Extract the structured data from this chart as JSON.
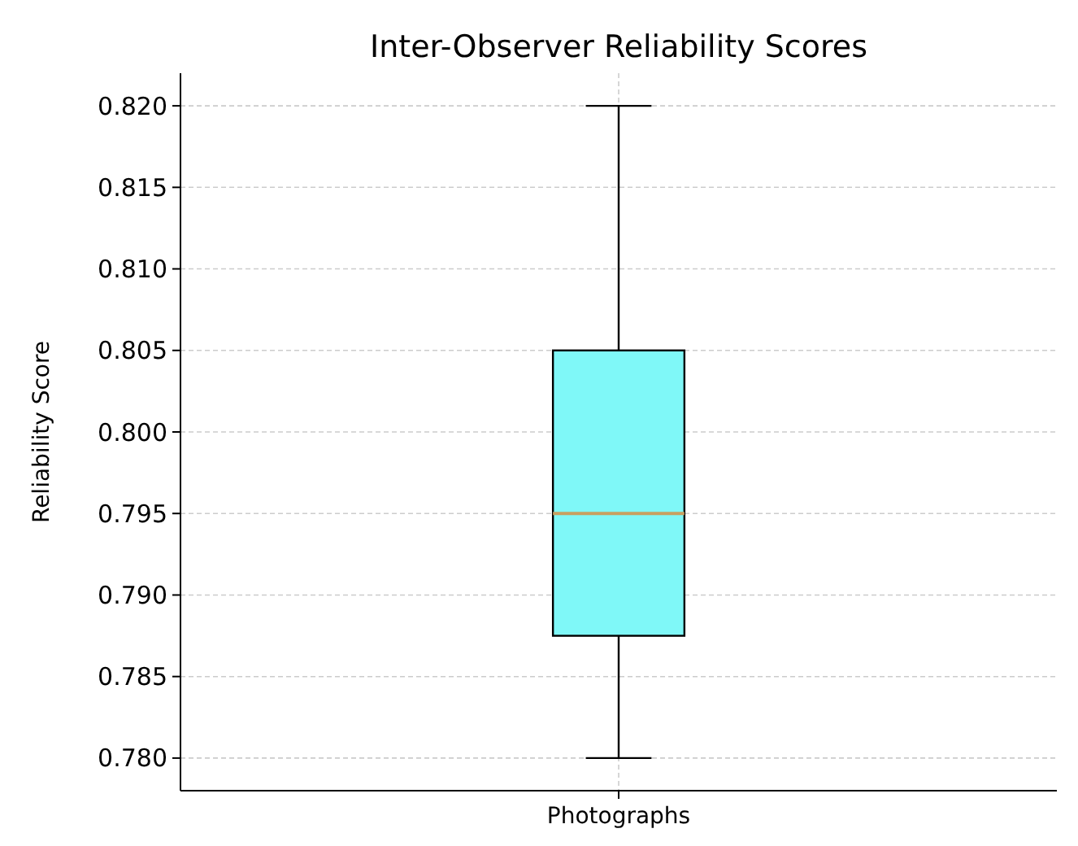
{
  "chart_data": {
    "type": "box",
    "title": "Inter-Observer Reliability Scores",
    "ylabel": "Reliability Score",
    "categories": [
      "Photographs"
    ],
    "series": [
      {
        "color": "#7ff8f8",
        "boxes": [
          {
            "low": 0.78,
            "q1": 0.7875,
            "median": 0.795,
            "q3": 0.805,
            "high": 0.82
          }
        ]
      }
    ],
    "ylim": [
      0.778,
      0.822
    ],
    "yticks": [
      {
        "value": 0.78,
        "label": "0.780"
      },
      {
        "value": 0.785,
        "label": "0.785"
      },
      {
        "value": 0.79,
        "label": "0.790"
      },
      {
        "value": 0.795,
        "label": "0.795"
      },
      {
        "value": 0.8,
        "label": "0.800"
      },
      {
        "value": 0.805,
        "label": "0.805"
      },
      {
        "value": 0.81,
        "label": "0.810"
      },
      {
        "value": 0.815,
        "label": "0.815"
      },
      {
        "value": 0.82,
        "label": "0.820"
      }
    ],
    "grid": true
  }
}
